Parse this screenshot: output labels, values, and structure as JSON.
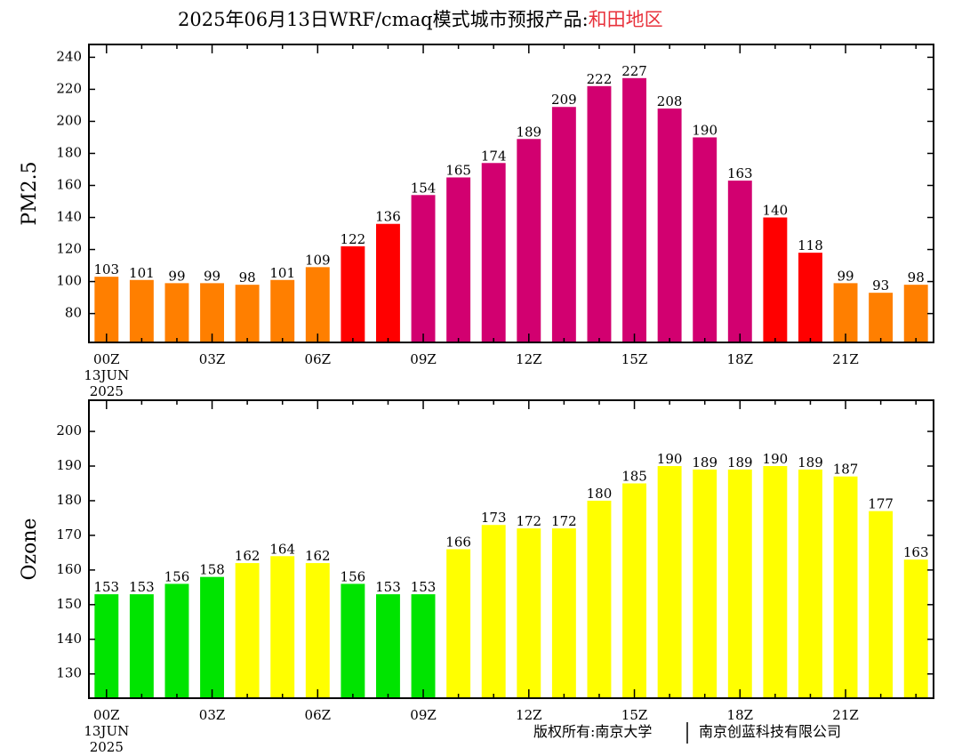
{
  "title": {
    "main": "2025年06月13日WRF/cmaq模式城市预报产品:",
    "region": "和田地区",
    "region_color": "#e8323c"
  },
  "copyright": {
    "left": "版权所有:南京大学",
    "right": "南京创蓝科技有限公司"
  },
  "chart_data": [
    {
      "type": "bar",
      "ylabel": "PM2.5",
      "ylim": [
        62,
        248
      ],
      "yticks": [
        80,
        100,
        120,
        140,
        160,
        180,
        200,
        220,
        240
      ],
      "xtick_labels": [
        "00Z",
        "03Z",
        "06Z",
        "09Z",
        "12Z",
        "15Z",
        "18Z",
        "21Z"
      ],
      "date_label": [
        "13JUN",
        "2025"
      ],
      "values": [
        103,
        101,
        99,
        99,
        98,
        101,
        109,
        122,
        136,
        154,
        165,
        174,
        189,
        209,
        222,
        227,
        208,
        190,
        163,
        140,
        118,
        99,
        93,
        98
      ],
      "colors": [
        "#ff7f00",
        "#ff7f00",
        "#ff7f00",
        "#ff7f00",
        "#ff7f00",
        "#ff7f00",
        "#ff7f00",
        "#ff0000",
        "#ff0000",
        "#d20070",
        "#d20070",
        "#d20070",
        "#d20070",
        "#d20070",
        "#d20070",
        "#d20070",
        "#d20070",
        "#d20070",
        "#d20070",
        "#ff0000",
        "#ff0000",
        "#ff7f00",
        "#ff7f00",
        "#ff7f00"
      ]
    },
    {
      "type": "bar",
      "ylabel": "Ozone",
      "ylim": [
        123,
        209
      ],
      "yticks": [
        130,
        140,
        150,
        160,
        170,
        180,
        190,
        200
      ],
      "xtick_labels": [
        "00Z",
        "03Z",
        "06Z",
        "09Z",
        "12Z",
        "15Z",
        "18Z",
        "21Z"
      ],
      "date_label": [
        "13JUN",
        "2025"
      ],
      "values": [
        153,
        153,
        156,
        158,
        162,
        164,
        162,
        156,
        153,
        153,
        166,
        173,
        172,
        172,
        180,
        185,
        190,
        189,
        189,
        190,
        189,
        187,
        177,
        163
      ],
      "colors": [
        "#00e400",
        "#00e400",
        "#00e400",
        "#00e400",
        "#ffff00",
        "#ffff00",
        "#ffff00",
        "#00e400",
        "#00e400",
        "#00e400",
        "#ffff00",
        "#ffff00",
        "#ffff00",
        "#ffff00",
        "#ffff00",
        "#ffff00",
        "#ffff00",
        "#ffff00",
        "#ffff00",
        "#ffff00",
        "#ffff00",
        "#ffff00",
        "#ffff00",
        "#ffff00"
      ]
    }
  ]
}
